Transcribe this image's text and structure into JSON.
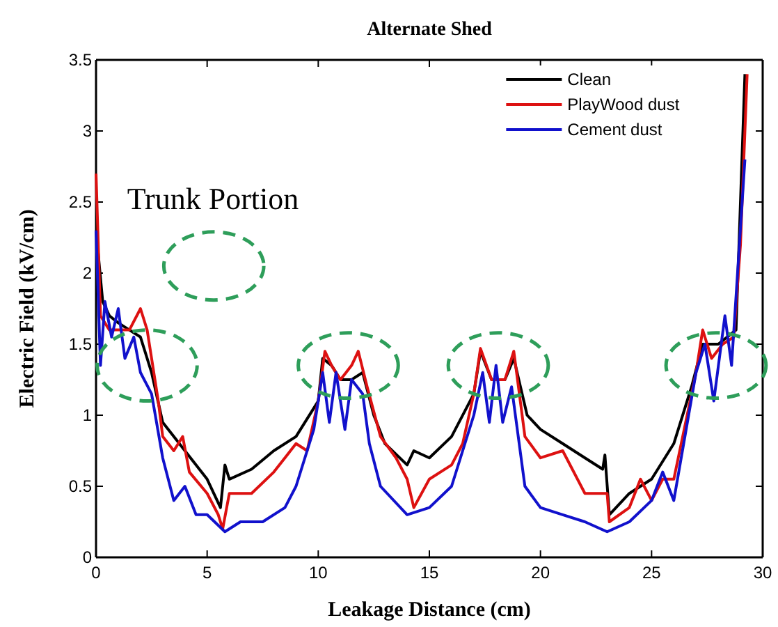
{
  "chart_data": {
    "type": "line",
    "title": "Alternate Shed",
    "xlabel": "Leakage Distance  (cm)",
    "ylabel": "Electric Field  (kV/cm)",
    "annotations": [
      "Trunk Portion"
    ],
    "xlim": [
      0,
      30
    ],
    "ylim": [
      0,
      3.5
    ],
    "xticks": [
      0,
      5,
      10,
      15,
      20,
      25,
      30
    ],
    "yticks": [
      0,
      0.5,
      1,
      1.5,
      2,
      2.5,
      3,
      3.5
    ],
    "legend": "top right",
    "grid": false,
    "line_style": "solid",
    "series": [
      {
        "name": "Clean",
        "color": "#000000",
        "x": [
          0,
          0.3,
          0.6,
          1,
          1.5,
          2,
          2.5,
          3,
          4,
          5,
          5.6,
          5.8,
          6,
          7,
          8,
          9,
          10,
          10.2,
          10.6,
          11,
          11.5,
          12,
          12.5,
          13,
          14,
          14.3,
          15,
          16,
          17,
          17.3,
          17.8,
          18.4,
          18.8,
          19.4,
          20,
          21,
          22,
          22.8,
          22.9,
          23.1,
          24,
          25,
          26,
          26.8,
          27.3,
          28,
          28.8,
          29,
          29.2
        ],
        "values": [
          2.3,
          1.8,
          1.7,
          1.65,
          1.6,
          1.55,
          1.3,
          0.95,
          0.75,
          0.55,
          0.35,
          0.65,
          0.55,
          0.62,
          0.75,
          0.85,
          1.1,
          1.4,
          1.35,
          1.25,
          1.25,
          1.3,
          1.0,
          0.8,
          0.65,
          0.75,
          0.7,
          0.85,
          1.15,
          1.45,
          1.25,
          1.25,
          1.4,
          1.0,
          0.9,
          0.8,
          0.7,
          0.62,
          0.72,
          0.3,
          0.45,
          0.55,
          0.8,
          1.2,
          1.5,
          1.5,
          1.6,
          2.5,
          3.4
        ]
      },
      {
        "name": "PlayWood dust",
        "color": "#dd1111",
        "x": [
          0,
          0.2,
          0.6,
          1,
          1.5,
          2,
          2.3,
          2.8,
          3,
          3.5,
          3.9,
          4.2,
          5,
          5.5,
          5.7,
          6,
          7,
          8,
          8.5,
          9,
          9.5,
          10,
          10.3,
          10.6,
          11,
          11.5,
          11.8,
          12.2,
          12.8,
          13.5,
          14,
          14.3,
          15,
          16,
          16.5,
          17,
          17.3,
          17.8,
          18.4,
          18.8,
          19.3,
          20,
          21,
          22,
          23,
          23.1,
          24,
          24.5,
          25,
          25.5,
          26,
          27,
          27.3,
          27.7,
          28.2,
          28.7,
          29,
          29.3
        ],
        "values": [
          2.7,
          1.7,
          1.6,
          1.6,
          1.6,
          1.75,
          1.6,
          1.1,
          0.85,
          0.75,
          0.85,
          0.6,
          0.45,
          0.3,
          0.2,
          0.45,
          0.45,
          0.6,
          0.7,
          0.8,
          0.75,
          1.1,
          1.45,
          1.35,
          1.25,
          1.35,
          1.45,
          1.2,
          0.85,
          0.7,
          0.55,
          0.35,
          0.55,
          0.65,
          0.8,
          1.15,
          1.47,
          1.25,
          1.25,
          1.45,
          0.85,
          0.7,
          0.75,
          0.45,
          0.45,
          0.25,
          0.35,
          0.55,
          0.4,
          0.55,
          0.55,
          1.3,
          1.6,
          1.4,
          1.5,
          1.55,
          2.2,
          3.4
        ]
      },
      {
        "name": "Cement dust",
        "color": "#1111cc",
        "x": [
          0,
          0.2,
          0.4,
          0.7,
          1,
          1.3,
          1.7,
          2,
          2.5,
          3,
          3.5,
          4,
          4.5,
          5,
          5.8,
          6.5,
          7.5,
          8.5,
          9,
          9.8,
          10.2,
          10.5,
          10.8,
          11.2,
          11.5,
          12,
          12.3,
          12.8,
          14,
          15,
          16,
          17,
          17.4,
          17.7,
          18,
          18.3,
          18.7,
          19.3,
          20,
          21,
          22,
          23,
          24,
          25,
          25.5,
          26,
          27,
          27.4,
          27.8,
          28.3,
          28.6,
          29.2
        ],
        "values": [
          2.3,
          1.35,
          1.8,
          1.55,
          1.75,
          1.4,
          1.55,
          1.3,
          1.15,
          0.7,
          0.4,
          0.5,
          0.3,
          0.3,
          0.18,
          0.25,
          0.25,
          0.35,
          0.5,
          0.9,
          1.3,
          0.95,
          1.3,
          0.9,
          1.25,
          1.15,
          0.8,
          0.5,
          0.3,
          0.35,
          0.5,
          1.0,
          1.3,
          0.95,
          1.35,
          0.95,
          1.2,
          0.5,
          0.35,
          0.3,
          0.25,
          0.18,
          0.25,
          0.4,
          0.6,
          0.4,
          1.3,
          1.5,
          1.1,
          1.7,
          1.35,
          2.8
        ]
      }
    ]
  }
}
